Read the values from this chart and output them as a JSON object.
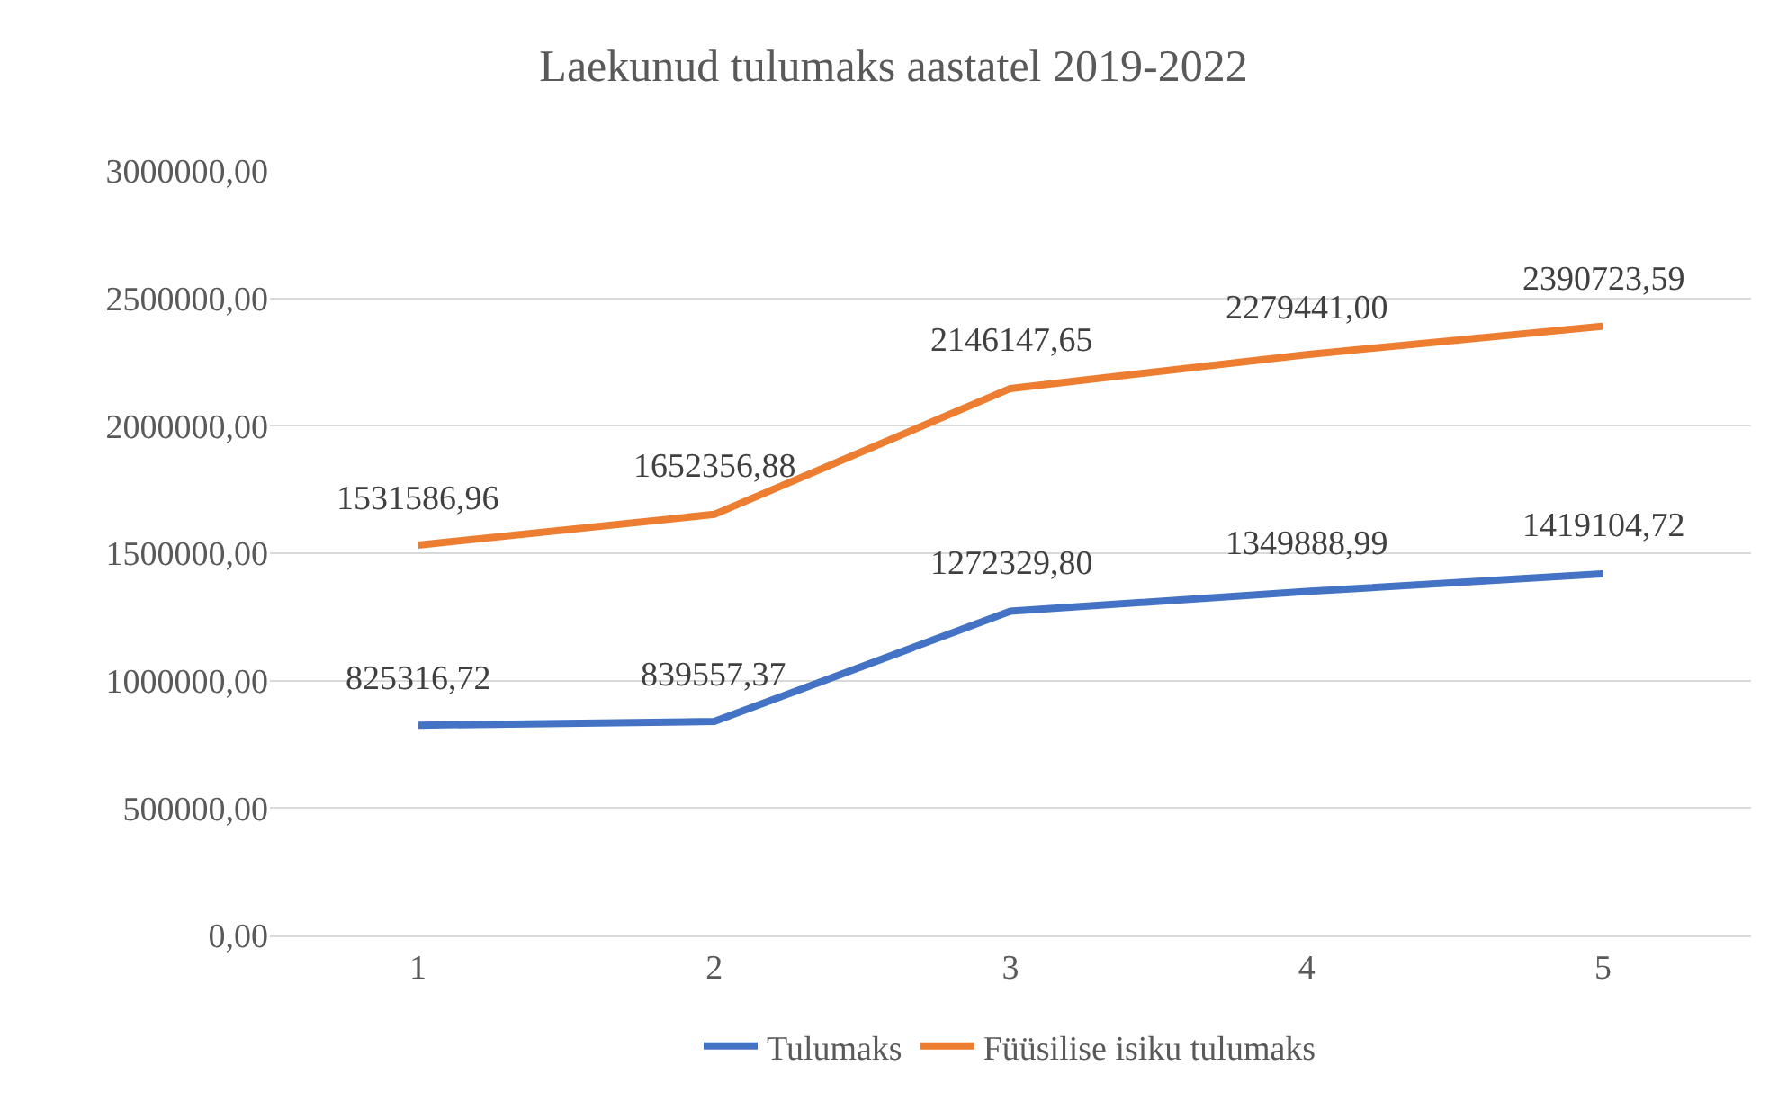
{
  "chart_data": {
    "type": "line",
    "title": "Laekunud tulumaks aastatel 2019-2022",
    "categories": [
      "1",
      "2",
      "3",
      "4",
      "5"
    ],
    "series": [
      {
        "name": "Tulumaks",
        "color": "#4472c4",
        "values": [
          825316.72,
          839557.37,
          1272329.8,
          1349888.99,
          1419104.72
        ],
        "value_labels": [
          "825316,72",
          "839557,37",
          "1272329,80",
          "1349888,99",
          "1419104,72"
        ]
      },
      {
        "name": "Füüsilise isiku tulumaks",
        "color": "#ed7d31",
        "values": [
          1531586.96,
          1652356.88,
          2146147.65,
          2279441.0,
          2390723.59
        ],
        "value_labels": [
          "1531586,96",
          "1652356,88",
          "2146147,65",
          "2279441,00",
          "2390723,59"
        ]
      }
    ],
    "ylim": [
      0,
      3000000
    ],
    "yticks": [
      {
        "value": 0,
        "label": "0,00"
      },
      {
        "value": 500000,
        "label": "500000,00"
      },
      {
        "value": 1000000,
        "label": "1000000,00"
      },
      {
        "value": 1500000,
        "label": "1500000,00"
      },
      {
        "value": 2000000,
        "label": "2000000,00"
      },
      {
        "value": 2500000,
        "label": "2500000,00"
      },
      {
        "value": 3000000,
        "label": "3000000,00"
      }
    ],
    "grid": "y",
    "legend": "bottom",
    "marker": "none",
    "line_style": "solid"
  }
}
